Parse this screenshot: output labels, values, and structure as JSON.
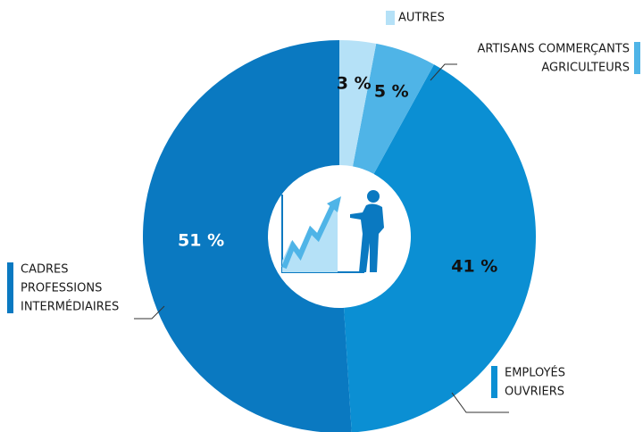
{
  "chart_data": {
    "type": "donut",
    "categories": [
      [
        "AUTRES"
      ],
      [
        "ARTISANS COMMERÇANTS",
        "AGRICULTEURS"
      ],
      [
        "EMPLOYÉS",
        "OUVRIERS"
      ],
      [
        "CADRES",
        "PROFESSIONS",
        "INTERMÉDIAIRES"
      ]
    ],
    "values": [
      3,
      5,
      41,
      51
    ],
    "value_labels": [
      "3 %",
      "5 %",
      "41 %",
      "51 %"
    ],
    "colors": [
      "#b5e1f7",
      "#4fb4e7",
      "#0b8fd3",
      "#0a79c1"
    ]
  }
}
